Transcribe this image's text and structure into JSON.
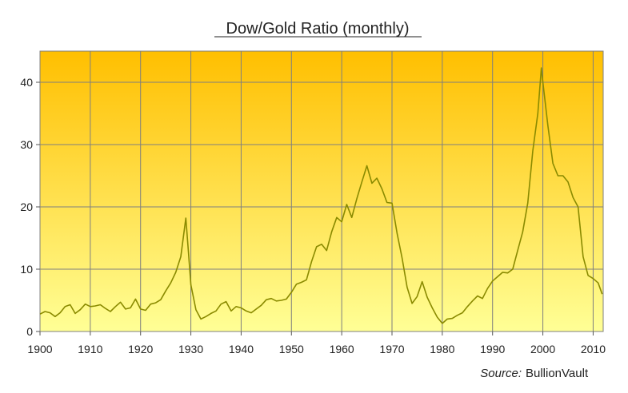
{
  "chart_data": {
    "type": "line",
    "title": "Dow/Gold Ratio (monthly)",
    "xlabel": "",
    "ylabel": "",
    "xlim": [
      1900,
      2012
    ],
    "ylim": [
      0,
      45
    ],
    "x_ticks": [
      "1900",
      "1910",
      "1920",
      "1930",
      "1940",
      "1950",
      "1960",
      "1970",
      "1980",
      "1990",
      "2000",
      "2010"
    ],
    "y_ticks": [
      "0",
      "10",
      "20",
      "30",
      "40"
    ],
    "grid": true,
    "series": [
      {
        "color": "#8a8a00",
        "x": [
          1900,
          1901,
          1902,
          1903,
          1904,
          1905,
          1906,
          1907,
          1908,
          1909,
          1910,
          1911,
          1912,
          1913,
          1914,
          1915,
          1916,
          1917,
          1918,
          1919,
          1920,
          1921,
          1922,
          1923,
          1924,
          1925,
          1926,
          1927,
          1928,
          1929,
          1929.5,
          1930,
          1931,
          1932,
          1933,
          1934,
          1935,
          1936,
          1937,
          1938,
          1939,
          1940,
          1941,
          1942,
          1943,
          1944,
          1945,
          1946,
          1947,
          1948,
          1949,
          1950,
          1951,
          1952,
          1953,
          1954,
          1955,
          1956,
          1957,
          1958,
          1959,
          1960,
          1961,
          1962,
          1963,
          1964,
          1965,
          1966,
          1967,
          1968,
          1969,
          1970,
          1971,
          1972,
          1973,
          1974,
          1975,
          1976,
          1977,
          1978,
          1979,
          1980,
          1981,
          1982,
          1983,
          1984,
          1985,
          1986,
          1987,
          1988,
          1989,
          1990,
          1991,
          1992,
          1993,
          1994,
          1995,
          1996,
          1997,
          1998,
          1999,
          1999.7,
          2000,
          2001,
          2002,
          2003,
          2004,
          2005,
          2006,
          2007,
          2008,
          2009,
          2010,
          2011,
          2011.8
        ],
        "y": [
          2.8,
          3.2,
          3.0,
          2.4,
          3.0,
          4.0,
          4.3,
          2.9,
          3.5,
          4.4,
          4.0,
          4.1,
          4.3,
          3.7,
          3.2,
          4.0,
          4.7,
          3.6,
          3.8,
          5.2,
          3.6,
          3.4,
          4.4,
          4.6,
          5.1,
          6.5,
          7.8,
          9.5,
          12.0,
          18.2,
          13.0,
          7.5,
          3.5,
          2.0,
          2.4,
          2.9,
          3.3,
          4.4,
          4.8,
          3.3,
          4.0,
          3.8,
          3.3,
          3.0,
          3.6,
          4.2,
          5.1,
          5.3,
          4.9,
          5.0,
          5.2,
          6.3,
          7.6,
          7.9,
          8.3,
          11.2,
          13.6,
          14.0,
          13.0,
          16.0,
          18.3,
          17.6,
          20.4,
          18.3,
          21.3,
          24.0,
          26.6,
          23.8,
          24.6,
          22.9,
          20.7,
          20.6,
          15.8,
          11.8,
          7.1,
          4.5,
          5.6,
          8.0,
          5.5,
          3.8,
          2.3,
          1.3,
          2.0,
          2.1,
          2.6,
          3.0,
          4.0,
          4.9,
          5.7,
          5.3,
          6.9,
          8.1,
          8.8,
          9.5,
          9.4,
          10.0,
          13.0,
          16.0,
          20.6,
          29.0,
          35.0,
          42.3,
          40.0,
          33.0,
          27.0,
          25.0,
          25.0,
          24.0,
          21.5,
          20.0,
          12.0,
          9.0,
          8.5,
          7.8,
          6.0
        ]
      }
    ]
  },
  "source": {
    "prefix": "Source:",
    "name": "BullionVault"
  },
  "colors": {
    "plot_top": "#ffbf00",
    "plot_bottom": "#ffff96",
    "line": "#8a8a00",
    "grid": "#7f7f7f"
  }
}
